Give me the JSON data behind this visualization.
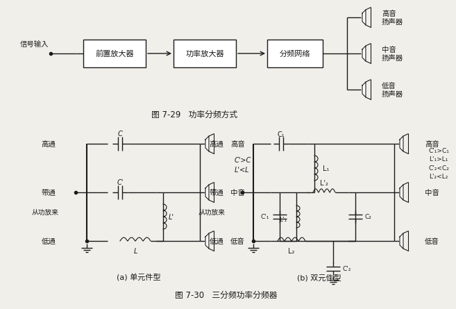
{
  "title_top": "图 7-29   功率分频方式",
  "title_bottom": "图 7-30   三分频功率分频器",
  "caption_a": "(a) 单元件型",
  "caption_b": "(b) 双元件型",
  "bg_color": "#f0efea",
  "line_color": "#1a1a1a",
  "text_color": "#1a1a1a",
  "signal_label": "信号输入",
  "box_labels": [
    "前置放大器",
    "功率放大器",
    "分频网络"
  ],
  "speaker_labels_top": [
    "高音\n扬声器",
    "中音\n扬声器",
    "低音\n扬声器"
  ],
  "left_labels_a": [
    "高通",
    "带通",
    "从功放来",
    "低通"
  ],
  "right_labels_a": [
    "高音",
    "中音",
    "低音"
  ],
  "note_a": "C'>C\nL'<L",
  "left_labels_b": [
    "高通",
    "带通",
    "从功放来",
    "低通"
  ],
  "right_labels_b": [
    "高音",
    "中音",
    "低音"
  ],
  "note_b": "C'₁>C₁\nL'₁>L₁\nC'₂<C₂\nL'₂<L₂"
}
